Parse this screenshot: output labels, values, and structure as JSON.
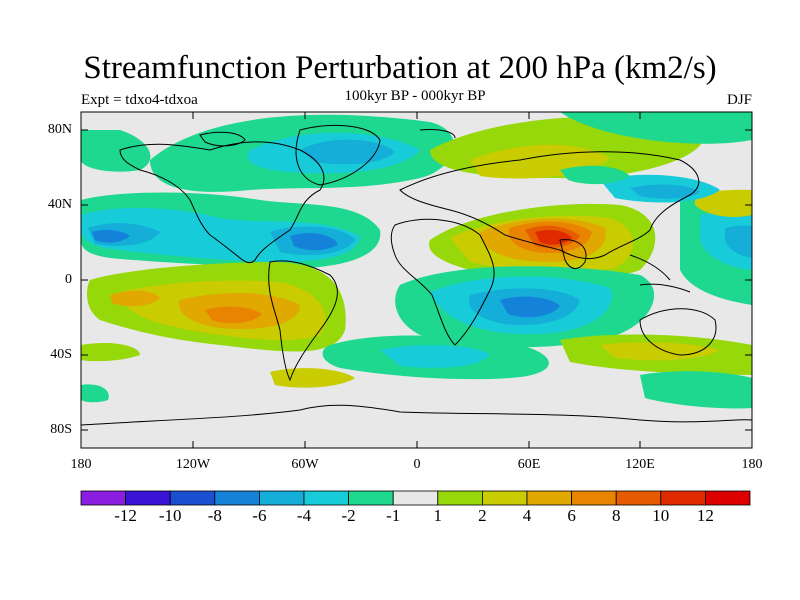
{
  "title": "Streamfunction Perturbation at 200 hPa (km2/s)",
  "left_label": "Expt = tdxo4-tdxoa",
  "center_label": "100kyr BP - 000kyr BP",
  "right_label": "DJF",
  "lat_labels": [
    "80N",
    "40N",
    "0",
    "40S",
    "80S"
  ],
  "lon_labels": [
    "180",
    "120W",
    "60W",
    "0",
    "60E",
    "120E",
    "180"
  ],
  "colorbar": {
    "labels": [
      "-12",
      "-10",
      "-8",
      "-6",
      "-4",
      "-2",
      "-1",
      "1",
      "2",
      "4",
      "6",
      "8",
      "10",
      "12"
    ],
    "colors": [
      "#8a1de0",
      "#3a14d6",
      "#1a4fd0",
      "#1482d8",
      "#14aed8",
      "#18cbd8",
      "#1ed890",
      "#e8e8e8",
      "#96d80a",
      "#c8cc00",
      "#e0a800",
      "#e88400",
      "#e65a00",
      "#e02a00",
      "#dc0000"
    ]
  },
  "colors": {
    "land_outline": "#000000",
    "missing": "#e8e8e8"
  }
}
